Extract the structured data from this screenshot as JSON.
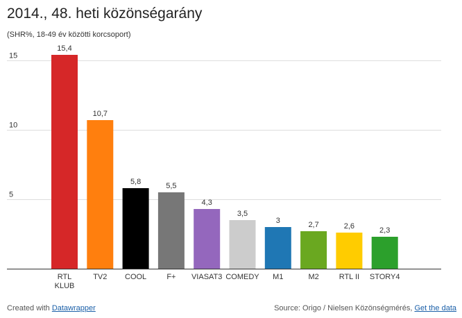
{
  "chart_data": {
    "type": "bar",
    "title": "2014., 48. heti közönségarány",
    "subtitle": "(SHR%, 18-49 év közötti korcsoport)",
    "categories": [
      "RTL KLUB",
      "TV2",
      "COOL",
      "F+",
      "VIASAT3",
      "COMEDY",
      "M1",
      "M2",
      "RTL II",
      "STORY4"
    ],
    "values": [
      15.4,
      10.7,
      5.8,
      5.5,
      4.3,
      3.5,
      3.0,
      2.7,
      2.6,
      2.3
    ],
    "value_labels": [
      "15,4",
      "10,7",
      "5,8",
      "5,5",
      "4,3",
      "3,5",
      "3",
      "2,7",
      "2,6",
      "2,3"
    ],
    "colors": [
      "#d62728",
      "#ff7f0e",
      "#000000",
      "#777777",
      "#9467bd",
      "#cccccc",
      "#1f77b4",
      "#6aa820",
      "#ffcc00",
      "#2ca02c"
    ],
    "yticks": [
      5,
      10,
      15
    ],
    "ylim": [
      0,
      15.4
    ],
    "grid": true,
    "xlabel": "",
    "ylabel": ""
  },
  "footer": {
    "created_prefix": "Created with ",
    "created_link": "Datawrapper",
    "source_prefix": "Source: Origo / Nielsen Közönségmérés, ",
    "source_link": "Get the data"
  }
}
